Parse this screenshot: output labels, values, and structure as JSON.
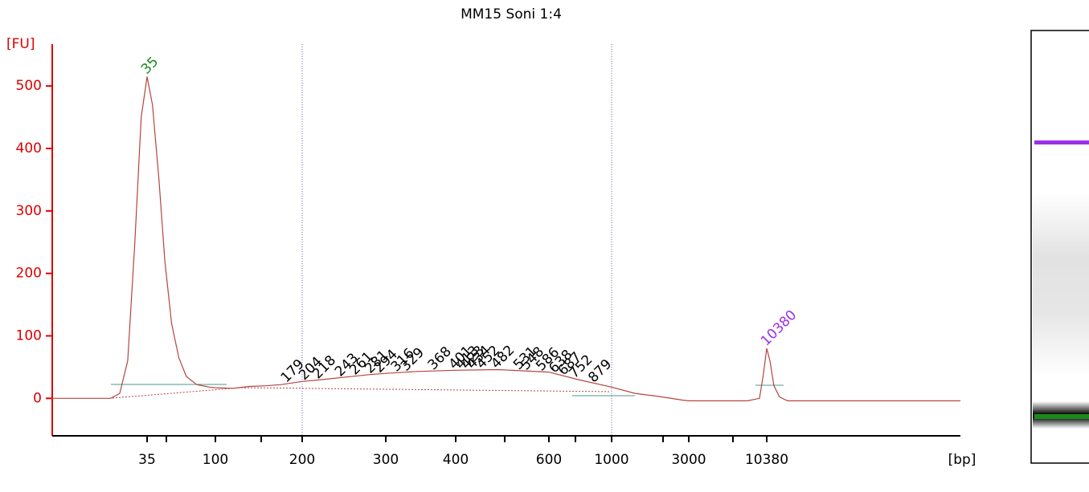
{
  "chart_data": {
    "type": "line",
    "title": "MM15 Soni 1:4",
    "y_label": "[FU]",
    "x_label": "[bp]",
    "x": [
      8,
      20,
      23,
      26,
      29,
      32,
      35,
      38,
      42,
      46,
      51,
      57,
      64,
      75,
      91,
      100,
      115,
      131,
      149,
      169,
      200,
      220,
      247,
      278,
      300,
      342,
      400,
      481,
      600,
      762,
      1000,
      1393,
      1964,
      2773,
      3000,
      7640,
      9250,
      9860,
      10380,
      10920,
      11650,
      12740,
      14480,
      227000
    ],
    "values": [
      0,
      0,
      8,
      60,
      250,
      450,
      515,
      470,
      350,
      220,
      120,
      65,
      35,
      22,
      18,
      17,
      16,
      19,
      20,
      22,
      27,
      30,
      34,
      38,
      40,
      43,
      45,
      46,
      42,
      30,
      18,
      8,
      3,
      -3,
      -4,
      -4,
      0,
      40,
      80,
      60,
      20,
      2,
      -4,
      -4
    ],
    "color": "#b5443f",
    "xlim": [
      8,
      227000
    ],
    "xticks": [
      35,
      100,
      200,
      300,
      400,
      600,
      1000,
      3000,
      10380
    ],
    "ylim": [
      -60,
      567
    ],
    "yticks": [
      0,
      100,
      200,
      300,
      400,
      500
    ],
    "region": [
      200,
      1000
    ],
    "markers": [
      {
        "bp": 35,
        "color": "#1a8a1a"
      },
      {
        "bp": 10380,
        "color": "#9b30e8"
      }
    ],
    "peaks": [
      179,
      204,
      218,
      243,
      261,
      281,
      294,
      316,
      329,
      368,
      401,
      413,
      423,
      434,
      452,
      482,
      531,
      548,
      586,
      638,
      687,
      752,
      879
    ]
  }
}
